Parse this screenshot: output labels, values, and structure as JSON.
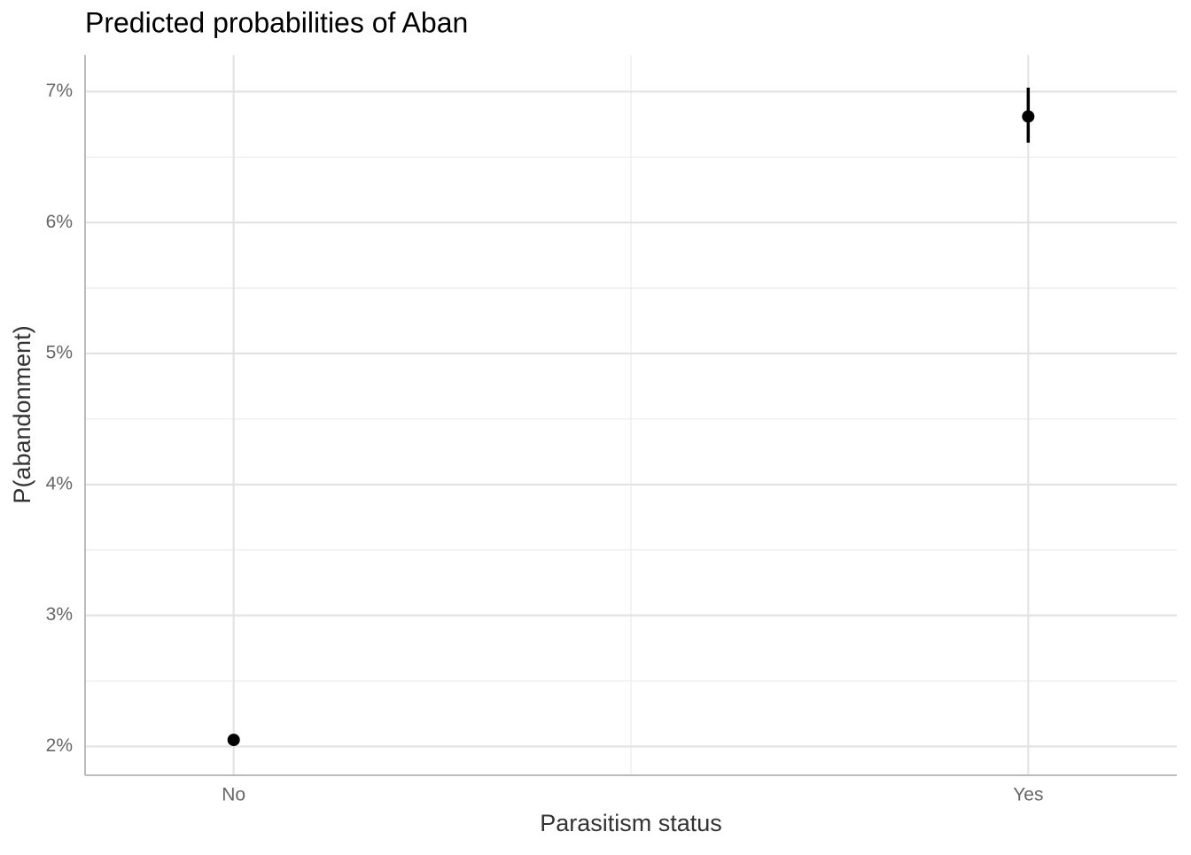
{
  "chart_data": {
    "type": "pointrange",
    "title": "Predicted probabilities of Aban",
    "x_label": "Parasitism status",
    "y_label": "P(abandonment)",
    "categories": [
      "No",
      "Yes"
    ],
    "values": [
      2.05,
      6.81
    ],
    "lower": [
      null,
      6.61
    ],
    "upper": [
      null,
      7.03
    ],
    "color": "#000000",
    "ylim": [
      1.78,
      7.28
    ],
    "yticks": [
      {
        "value": 2,
        "label": "2%"
      },
      {
        "value": 3,
        "label": "3%"
      },
      {
        "value": 4,
        "label": "4%"
      },
      {
        "value": 5,
        "label": "5%"
      },
      {
        "value": 6,
        "label": "6%"
      },
      {
        "value": 7,
        "label": "7%"
      }
    ],
    "minor_yticks": [
      2.5,
      3.5,
      4.5,
      5.5,
      6.5
    ],
    "grid": true
  }
}
